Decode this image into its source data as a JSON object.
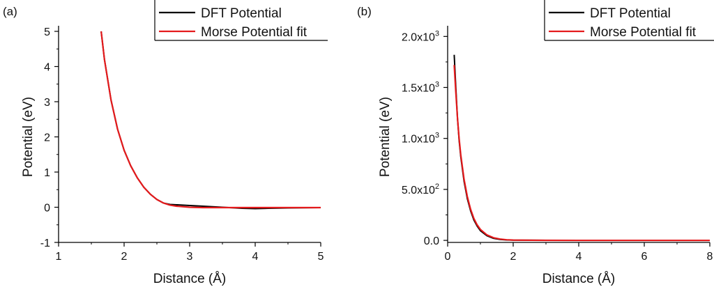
{
  "colors": {
    "dft": "#000000",
    "morse": "#e41a1c",
    "axis": "#000000"
  },
  "chart_data": [
    {
      "panel_label": "(a)",
      "type": "line",
      "xlabel": "Distance (Å)",
      "ylabel": "Potential (eV)",
      "xlim": [
        1,
        5
      ],
      "ylim": [
        -1,
        5
      ],
      "xticks": [
        1,
        2,
        3,
        4,
        5
      ],
      "xtick_labels": [
        "1",
        "2",
        "3",
        "4",
        "5"
      ],
      "yticks": [
        -1,
        0,
        1,
        2,
        3,
        4,
        5
      ],
      "ytick_labels": [
        "-1",
        "0",
        "1",
        "2",
        "3",
        "4",
        "5"
      ],
      "legend_position": "top-right",
      "series": [
        {
          "name": "DFT Potential",
          "color": "#000000",
          "x": [
            1.65,
            1.7,
            1.8,
            1.9,
            2.0,
            2.1,
            2.2,
            2.3,
            2.4,
            2.5,
            2.6,
            2.7,
            2.8,
            3.0,
            3.2,
            3.4,
            3.6,
            3.8,
            4.0,
            4.2,
            4.5,
            5.0
          ],
          "y": [
            5.0,
            4.2,
            3.05,
            2.22,
            1.62,
            1.18,
            0.84,
            0.57,
            0.37,
            0.22,
            0.12,
            0.08,
            0.07,
            0.05,
            0.03,
            0.01,
            -0.01,
            -0.03,
            -0.04,
            -0.03,
            -0.02,
            -0.01
          ]
        },
        {
          "name": "Morse Potential fit",
          "color": "#e41a1c",
          "x": [
            1.65,
            1.7,
            1.8,
            1.9,
            2.0,
            2.1,
            2.2,
            2.3,
            2.4,
            2.5,
            2.6,
            2.7,
            2.8,
            3.0,
            3.2,
            3.4,
            3.6,
            3.8,
            4.0,
            4.2,
            4.5,
            5.0
          ],
          "y": [
            5.0,
            4.2,
            3.05,
            2.22,
            1.62,
            1.18,
            0.84,
            0.57,
            0.37,
            0.22,
            0.12,
            0.06,
            0.03,
            0.0,
            -0.01,
            -0.01,
            -0.01,
            -0.01,
            -0.01,
            -0.01,
            -0.01,
            -0.01
          ]
        }
      ]
    },
    {
      "panel_label": "(b)",
      "type": "line",
      "xlabel": "Distance (Å)",
      "ylabel": "Potential (eV)",
      "xlim": [
        0,
        8
      ],
      "ylim": [
        -20,
        2050
      ],
      "xticks": [
        0,
        2,
        4,
        6,
        8
      ],
      "xtick_labels": [
        "0",
        "2",
        "4",
        "6",
        "8"
      ],
      "yticks": [
        0,
        500,
        1000,
        1500,
        2000
      ],
      "ytick_labels": [
        {
          "base": "0.0",
          "exp": ""
        },
        {
          "base": "5.0x10",
          "exp": "2"
        },
        {
          "base": "1.0x10",
          "exp": "3"
        },
        {
          "base": "1.5x10",
          "exp": "3"
        },
        {
          "base": "2.0x10",
          "exp": "3"
        }
      ],
      "legend_position": "top-right",
      "series": [
        {
          "name": "DFT Potential",
          "color": "#000000",
          "x": [
            0.2,
            0.25,
            0.3,
            0.35,
            0.4,
            0.5,
            0.6,
            0.7,
            0.8,
            0.9,
            1.0,
            1.2,
            1.4,
            1.6,
            1.8,
            2.0,
            3.0,
            4.0,
            6.0,
            8.0
          ],
          "y": [
            1820,
            1500,
            1200,
            980,
            820,
            580,
            410,
            290,
            200,
            140,
            95,
            45,
            20,
            9,
            4,
            2,
            0.5,
            0,
            0,
            0
          ]
        },
        {
          "name": "Morse Potential fit",
          "color": "#e41a1c",
          "x": [
            0.2,
            0.25,
            0.3,
            0.35,
            0.4,
            0.5,
            0.6,
            0.7,
            0.8,
            0.9,
            1.0,
            1.2,
            1.4,
            1.6,
            1.8,
            2.0,
            3.0,
            4.0,
            6.0,
            8.0
          ],
          "y": [
            1720,
            1450,
            1200,
            1000,
            840,
            600,
            430,
            305,
            215,
            152,
            107,
            53,
            26,
            13,
            6,
            3,
            0.3,
            0,
            0,
            0
          ]
        }
      ]
    }
  ]
}
